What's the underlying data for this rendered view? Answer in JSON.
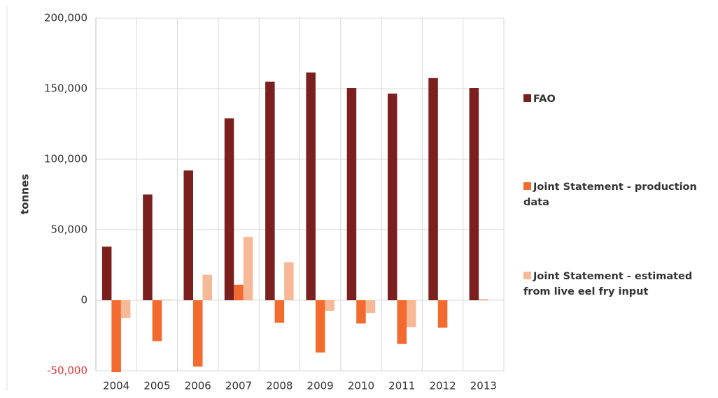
{
  "chart_data": {
    "type": "bar",
    "y_label": "tonnes",
    "categories": [
      "2004",
      "2005",
      "2006",
      "2007",
      "2008",
      "2009",
      "2010",
      "2011",
      "2012",
      "2013"
    ],
    "series": [
      {
        "name": "FAO",
        "color": "#7b1f1f",
        "values": [
          38000,
          75000,
          92000,
          129000,
          155000,
          161500,
          150500,
          146500,
          157500,
          150500
        ]
      },
      {
        "name": "Joint Statement - production data",
        "color": "#f26a2e",
        "values": [
          -51000,
          -29000,
          -47000,
          11000,
          -16000,
          -37000,
          -16500,
          -31000,
          -19500,
          500
        ]
      },
      {
        "name": "Joint Statement - estimated from live eel fry input",
        "color": "#f6b896",
        "values": [
          -12500,
          500,
          18000,
          45000,
          27000,
          -7500,
          -9000,
          -19000,
          null,
          null
        ]
      }
    ],
    "ylim": [
      -50000,
      200000
    ],
    "yticks": [
      {
        "value": -50000,
        "label": "-50,000"
      },
      0,
      {
        "value": 50000,
        "label": "50,000"
      },
      {
        "value": 100000,
        "label": "100,000"
      },
      {
        "value": 150000,
        "label": "150,000"
      },
      {
        "value": 200000,
        "label": "200,000"
      }
    ],
    "negative_tick_color": "#e8312f",
    "grid": true,
    "legend": "right"
  }
}
